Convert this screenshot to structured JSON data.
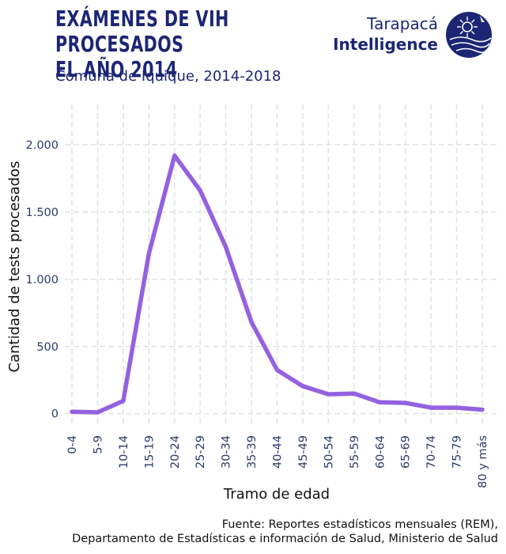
{
  "header": {
    "title_line1": "EXÁMENES DE VIH PROCESADOS",
    "title_line2": "EL AÑO 2014",
    "subtitle": "Comuna de Iquique, 2014-2018"
  },
  "logo": {
    "line1": "Tarapacá",
    "line2": "Intelligence",
    "icon": "sun-compass-logo-icon",
    "color": "#1c2674"
  },
  "footer": {
    "source_line1": "Fuente: Reportes estadísticos mensuales (REM),",
    "source_line2": "Departamento de Estadísticas e información de Salud, Ministerio de Salud"
  },
  "chart_data": {
    "type": "line",
    "xlabel": "Tramo de edad",
    "ylabel": "Cantidad de tests procesados",
    "categories": [
      "0-4",
      "5-9",
      "10-14",
      "15-19",
      "20-24",
      "25-29",
      "30-34",
      "35-39",
      "40-44",
      "45-49",
      "50-54",
      "55-59",
      "60-64",
      "65-69",
      "70-74",
      "75-79",
      "80 y más"
    ],
    "series": [
      {
        "values": [
          15,
          10,
          95,
          1190,
          1920,
          1660,
          1240,
          680,
          325,
          205,
          145,
          150,
          85,
          80,
          45,
          45,
          30
        ]
      }
    ],
    "yticks": [
      0,
      500,
      1000,
      1500,
      2000
    ],
    "ytick_labels": [
      "0",
      "500",
      "1.000",
      "1.500",
      "2.000"
    ],
    "ylim": [
      -90,
      2300
    ],
    "grid": true,
    "line_color": "#9461e0"
  }
}
